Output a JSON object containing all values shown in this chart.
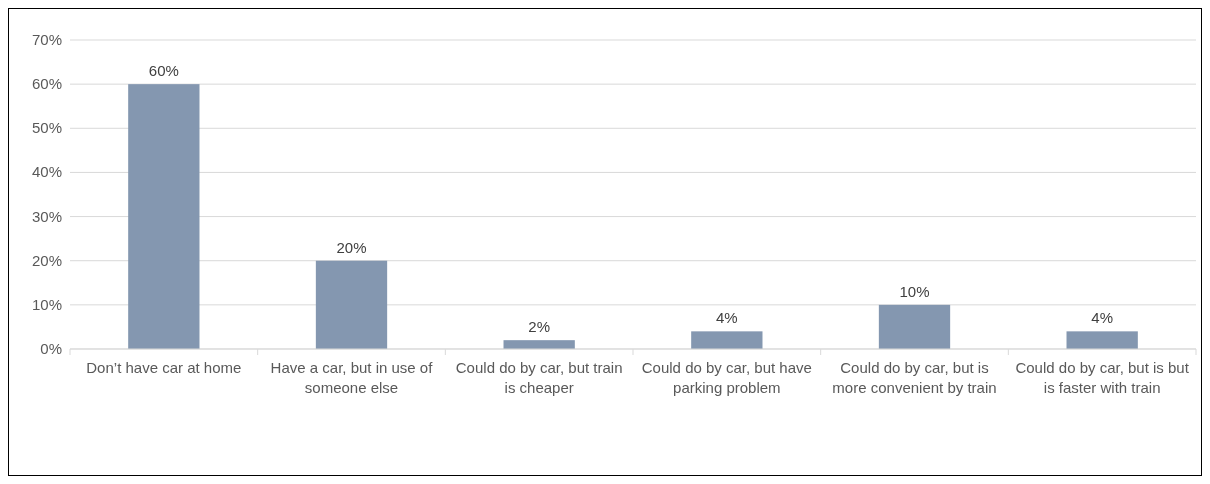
{
  "chart_data": {
    "type": "bar",
    "categories": [
      "Don’t have car at home",
      "Have a car, but in use of someone else",
      "Could do by car, but train is cheaper",
      "Could do by car, but have parking problem",
      "Could do by car, but is more convenient by train",
      "Could do by car, but is but is faster with train"
    ],
    "values": [
      60,
      20,
      2,
      4,
      10,
      4
    ],
    "value_labels": [
      "60%",
      "20%",
      "2%",
      "4%",
      "10%",
      "4%"
    ],
    "color": "#8497b0",
    "ylim": [
      0,
      70
    ],
    "yticks": [
      {
        "value": 0,
        "label": "0%"
      },
      {
        "value": 10,
        "label": "10%"
      },
      {
        "value": 20,
        "label": "20%"
      },
      {
        "value": 30,
        "label": "30%"
      },
      {
        "value": 40,
        "label": "40%"
      },
      {
        "value": 50,
        "label": "50%"
      },
      {
        "value": 60,
        "label": "60%"
      },
      {
        "value": 70,
        "label": "70%"
      }
    ],
    "grid": "y"
  }
}
